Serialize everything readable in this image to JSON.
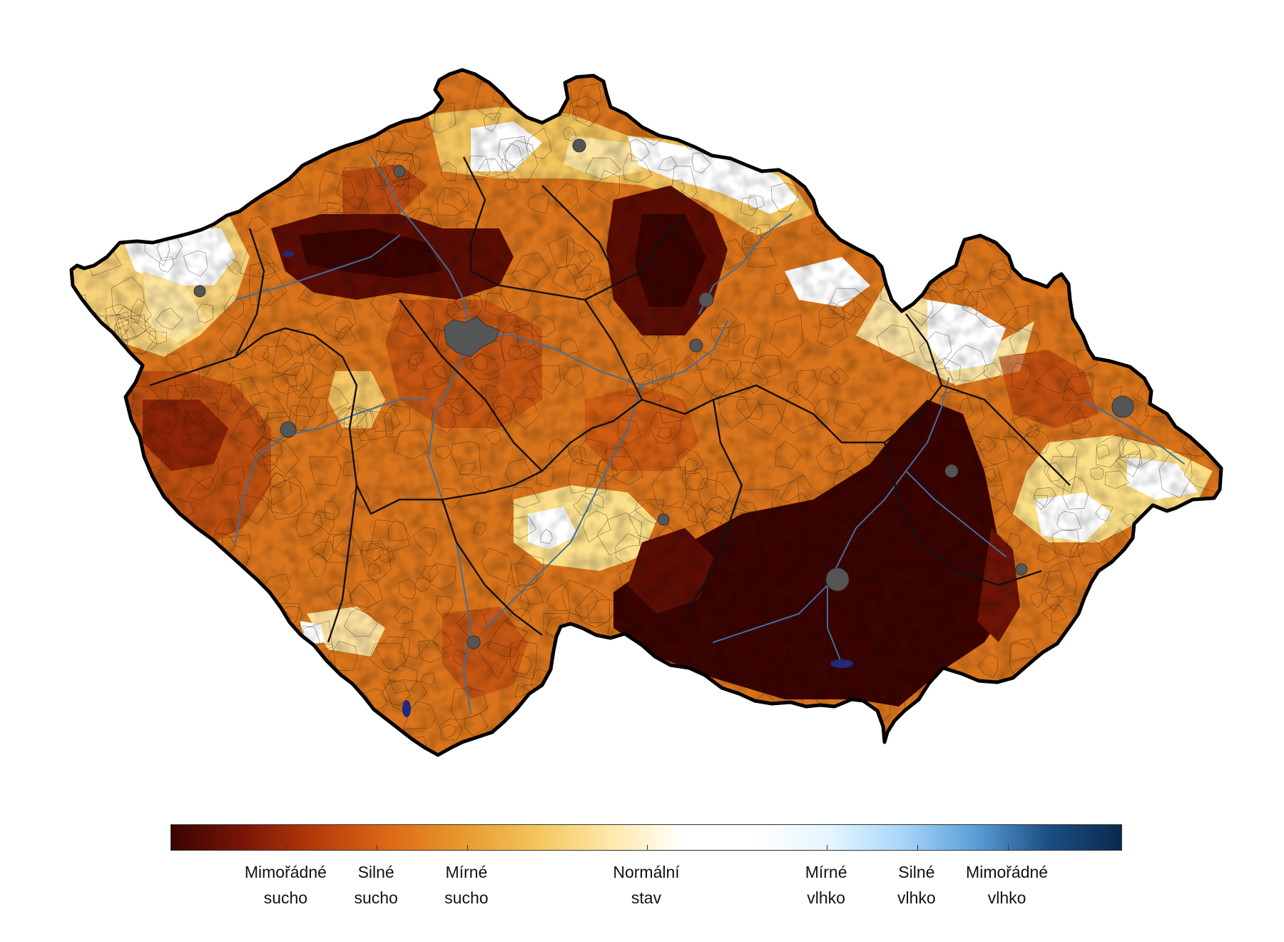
{
  "map": {
    "region": "Czech Republic",
    "type": "choropleth drought index map",
    "colors": {
      "extreme_dry": "#3a0402",
      "strong_dry": "#b83b0a",
      "moderate_dry": "#e79a2e",
      "mild": "#fbe08a",
      "normal": "#ffffff",
      "moderate_wet": "#cfe9fb",
      "strong_wet": "#6aa6d8",
      "extreme_wet": "#0a2a4e",
      "border": "#111111",
      "rivers": "#3f6f9a",
      "cities": "#555555"
    }
  },
  "legend": {
    "gradient": [
      "#3a0402",
      "#7a1606",
      "#b83b0a",
      "#de6a16",
      "#e79a2e",
      "#f4c55c",
      "#fde8a8",
      "#ffffff",
      "#ffffff",
      "#e5f6fe",
      "#a9d6fa",
      "#5b9ed6",
      "#1c4e84",
      "#0a2a4e"
    ],
    "items": [
      {
        "line1": "Mimořádné",
        "line2": "sucho",
        "pos": 0.121
      },
      {
        "line1": "Silné",
        "line2": "sucho",
        "pos": 0.216
      },
      {
        "line1": "Mírné",
        "line2": "sucho",
        "pos": 0.311
      },
      {
        "line1": "Normální",
        "line2": "stav",
        "pos": 0.5
      },
      {
        "line1": "Mírné",
        "line2": "vlhko",
        "pos": 0.689
      },
      {
        "line1": "Silné",
        "line2": "vlhko",
        "pos": 0.784
      },
      {
        "line1": "Mimořádné",
        "line2": "vlhko",
        "pos": 0.879
      }
    ]
  }
}
